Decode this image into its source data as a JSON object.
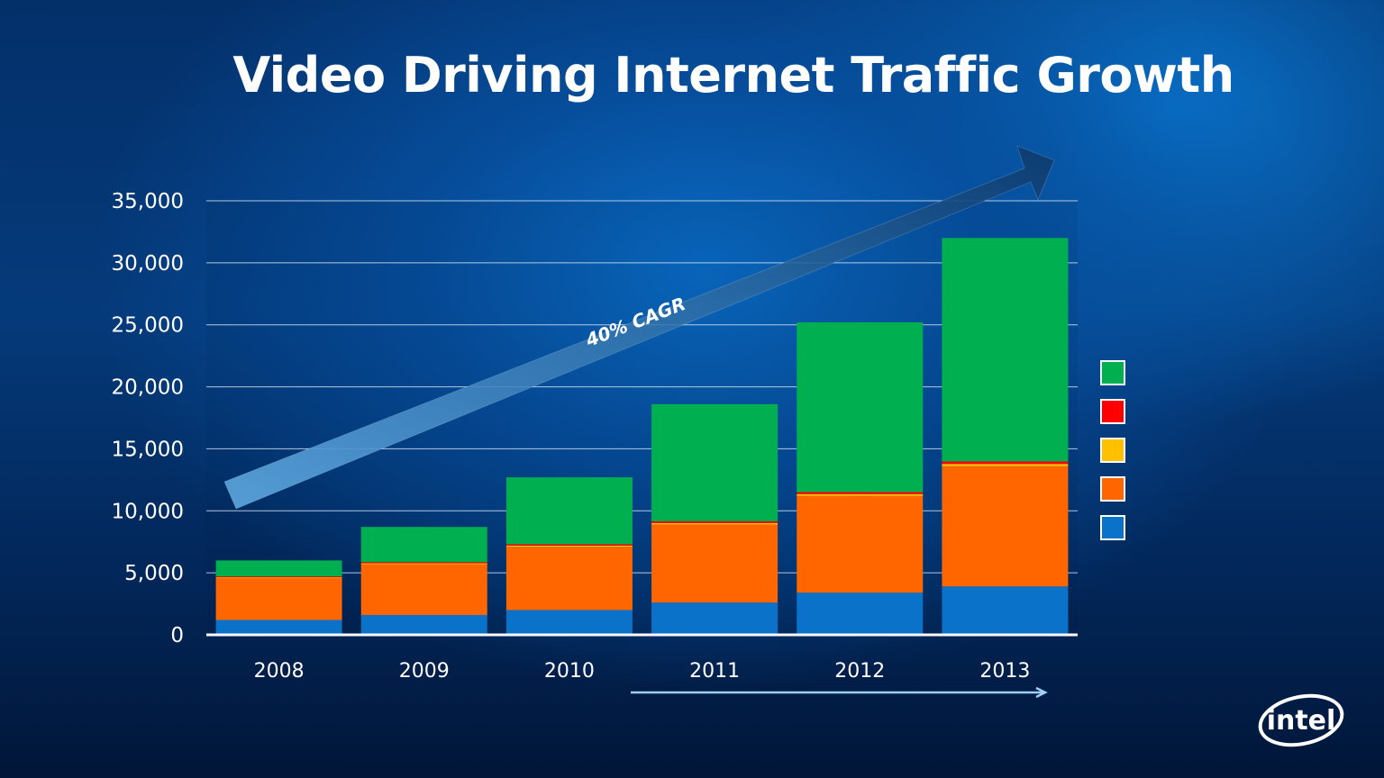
{
  "title": "Video Driving Internet Traffic Growth",
  "annotation": "40% CAGR",
  "logo_text": "intel",
  "colors": {
    "series_1": "#0a72c8",
    "series_2": "#ff6600",
    "series_3": "#ffc000",
    "series_4": "#ff0000",
    "series_5": "#00b050",
    "gridline": "#cfe2f5",
    "axis": "#ffffff"
  },
  "chart_data": {
    "type": "bar",
    "stacked": true,
    "categories": [
      "2008",
      "2009",
      "2010",
      "2011",
      "2012",
      "2013"
    ],
    "series": [
      {
        "values": [
          1200,
          1600,
          2000,
          2600,
          3400,
          3900
        ]
      },
      {
        "values": [
          3400,
          4100,
          5100,
          6300,
          7800,
          9700
        ]
      },
      {
        "values": [
          50,
          70,
          90,
          120,
          150,
          180
        ]
      },
      {
        "values": [
          60,
          90,
          110,
          140,
          160,
          200
        ]
      },
      {
        "values": [
          1290,
          2840,
          5400,
          9440,
          13690,
          18020
        ]
      }
    ],
    "yticks": [
      "0",
      "5,000",
      "10,000",
      "15,000",
      "20,000",
      "25,000",
      "30,000",
      "35,000"
    ],
    "ylim": [
      0,
      35000
    ],
    "ystep": 5000,
    "grid": true,
    "legend": "right"
  }
}
